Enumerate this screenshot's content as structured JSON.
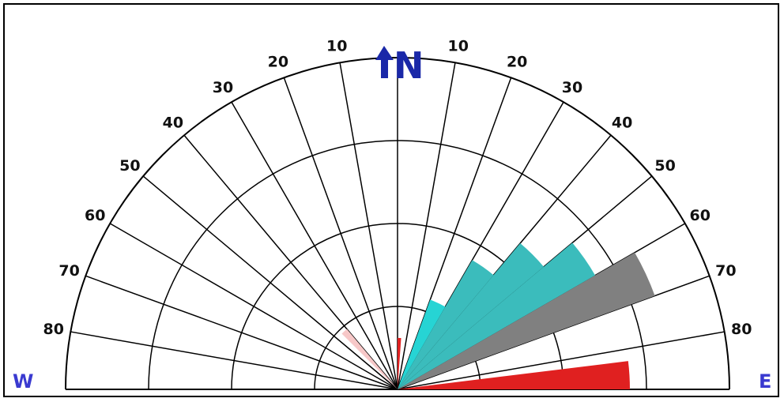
{
  "chart_data": {
    "type": "polar_rose",
    "title": "",
    "tick_labels_west": [
      "10",
      "20",
      "30",
      "40",
      "50",
      "60",
      "70",
      "80"
    ],
    "tick_labels_east": [
      "10",
      "20",
      "30",
      "40",
      "50",
      "60",
      "70",
      "80"
    ],
    "tick_angles_deg": [
      10,
      20,
      30,
      40,
      50,
      60,
      70,
      80
    ],
    "compass": {
      "north": "N",
      "west": "W",
      "east": "E"
    },
    "radial_rings": 4,
    "grid": true,
    "colors": {
      "red": "#e02020",
      "cyan": "#26d4d4",
      "teal": "#3bbcbc",
      "gray": "#808080",
      "pink": "#f7c8c8",
      "axis": "#000000",
      "compass": "#3a3ad0",
      "north_arrow": "#1a28a8"
    },
    "segments": [
      {
        "from_deg": -45,
        "to_deg": -40,
        "radius_rings": 0.95,
        "color": "pink"
      },
      {
        "from_deg": 0,
        "to_deg": 4,
        "radius_rings": 0.62,
        "color": "red"
      },
      {
        "from_deg": 20,
        "to_deg": 30,
        "radius_rings": 1.15,
        "color": "cyan"
      },
      {
        "from_deg": 30,
        "to_deg": 40,
        "radius_rings": 1.8,
        "color": "teal"
      },
      {
        "from_deg": 40,
        "to_deg": 50,
        "radius_rings": 2.3,
        "color": "teal"
      },
      {
        "from_deg": 50,
        "to_deg": 60,
        "radius_rings": 2.75,
        "color": "teal"
      },
      {
        "from_deg": 60,
        "to_deg": 70,
        "radius_rings": 3.3,
        "color": "gray"
      },
      {
        "from_deg": 83,
        "to_deg": 90,
        "radius_rings": 2.8,
        "color": "red"
      }
    ]
  }
}
